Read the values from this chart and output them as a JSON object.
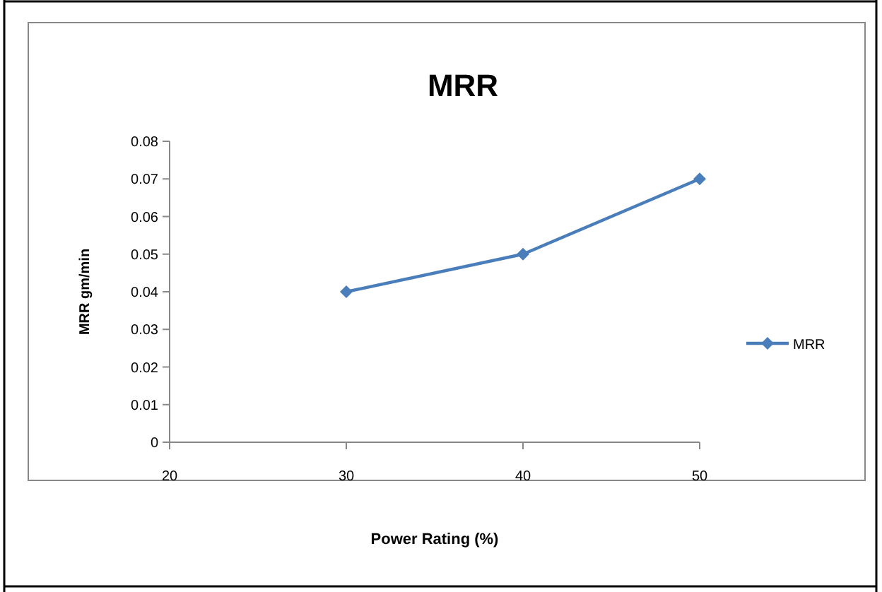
{
  "chart_data": {
    "type": "line",
    "title": "MRR",
    "xlabel": "Power Rating (%)",
    "ylabel": "MRR gm/min",
    "x": [
      30,
      40,
      50
    ],
    "series": [
      {
        "name": "MRR",
        "color": "#4a7ebb",
        "values": [
          0.04,
          0.05,
          0.07
        ]
      }
    ],
    "xlim": [
      20,
      50
    ],
    "xticks": [
      20,
      30,
      40,
      50
    ],
    "ylim": [
      0,
      0.08
    ],
    "yticks": [
      {
        "value": 0,
        "label": "0"
      },
      {
        "value": 0.01,
        "label": "0.01"
      },
      {
        "value": 0.02,
        "label": "0.02"
      },
      {
        "value": 0.03,
        "label": "0.03"
      },
      {
        "value": 0.04,
        "label": "0.04"
      },
      {
        "value": 0.05,
        "label": "0.05"
      },
      {
        "value": 0.06,
        "label": "0.06"
      },
      {
        "value": 0.07,
        "label": "0.07"
      },
      {
        "value": 0.08,
        "label": "0.08"
      }
    ],
    "grid": false,
    "legend": "right",
    "marker": "diamond",
    "line_style": "solid"
  }
}
